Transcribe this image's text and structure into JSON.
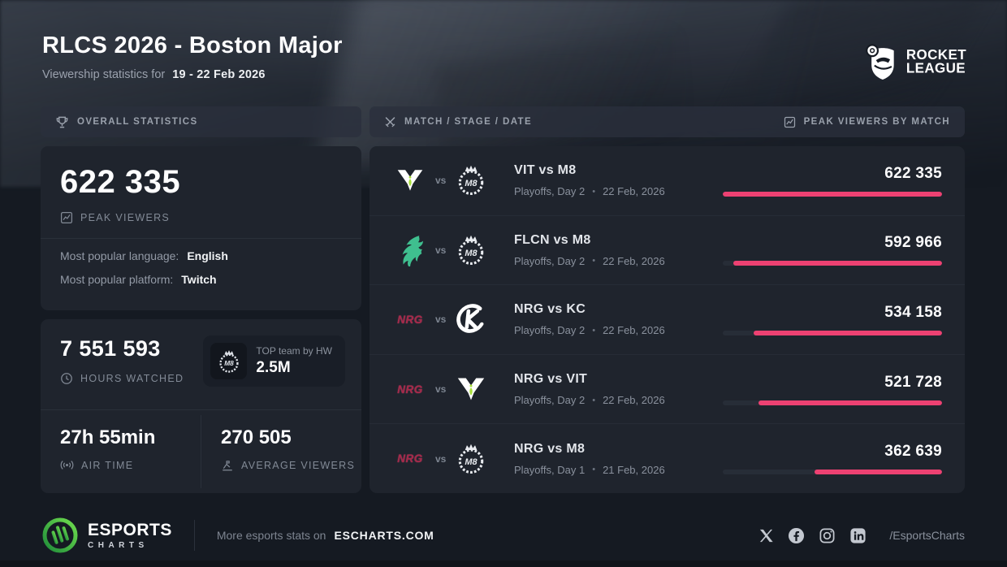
{
  "header": {
    "title": "RLCS 2026 - Boston Major",
    "subtitle_prefix": "Viewership statistics for",
    "date_range": "19 - 22 Feb 2026",
    "brand_line1": "ROCKET",
    "brand_line2": "LEAGUE"
  },
  "overall": {
    "panel_title": "OVERALL STATISTICS",
    "peak_viewers": {
      "value": "622 335",
      "label": "PEAK VIEWERS"
    },
    "language": {
      "label": "Most popular language:",
      "value": "English"
    },
    "platform": {
      "label": "Most popular platform:",
      "value": "Twitch"
    },
    "hours_watched": {
      "value": "7 551 593",
      "label": "HOURS WATCHED"
    },
    "top_team": {
      "label": "TOP team by HW",
      "value": "2.5M",
      "team": "M8"
    },
    "air_time": {
      "value": "27h 55min",
      "label": "AIR TIME"
    },
    "average_viewers": {
      "value": "270 505",
      "label": "AVERAGE VIEWERS"
    }
  },
  "matches": {
    "panel_title_left": "MATCH / STAGE / DATE",
    "panel_title_right": "PEAK VIEWERS BY MATCH",
    "vs_label": "vs",
    "rows": [
      {
        "team1": "VIT",
        "team2": "M8",
        "title": "VIT vs M8",
        "stage": "Playoffs, Day 2",
        "dot": "•",
        "date": "22 Feb, 2026",
        "value": "622 335"
      },
      {
        "team1": "FLCN",
        "team2": "M8",
        "title": "FLCN vs M8",
        "stage": "Playoffs, Day 2",
        "dot": "•",
        "date": "22 Feb, 2026",
        "value": "592 966"
      },
      {
        "team1": "NRG",
        "team2": "KC",
        "title": "NRG vs KC",
        "stage": "Playoffs, Day 2",
        "dot": "•",
        "date": "22 Feb, 2026",
        "value": "534 158"
      },
      {
        "team1": "NRG",
        "team2": "VIT",
        "title": "NRG vs VIT",
        "stage": "Playoffs, Day 2",
        "dot": "•",
        "date": "22 Feb, 2026",
        "value": "521 728"
      },
      {
        "team1": "NRG",
        "team2": "M8",
        "title": "NRG vs M8",
        "stage": "Playoffs, Day 1",
        "dot": "•",
        "date": "21 Feb, 2026",
        "value": "362 639"
      }
    ]
  },
  "chart_data": {
    "type": "bar",
    "orientation": "horizontal",
    "title": "PEAK VIEWERS BY MATCH",
    "categories": [
      "VIT vs M8",
      "FLCN vs M8",
      "NRG vs KC",
      "NRG vs VIT",
      "NRG vs M8"
    ],
    "values": [
      622335,
      592966,
      534158,
      521728,
      362639
    ],
    "value_labels": [
      "622 335",
      "592 966",
      "534 158",
      "521 728",
      "362 639"
    ],
    "xlim": [
      0,
      622335
    ],
    "bar_color": "#ED4172",
    "track_color": "#272D37",
    "bars_anchored": "right"
  },
  "footer": {
    "brand_line1": "ESPORTS",
    "brand_line2": "CHARTS",
    "tagline": "More esports stats on",
    "site": "ESCHARTS.COM",
    "handle": "/EsportsCharts",
    "social_icons": [
      "x",
      "facebook",
      "instagram",
      "linkedin"
    ]
  },
  "colors": {
    "background": "#151A22",
    "card": "#1F242D",
    "panel_header": "#2A303C",
    "accent_pink": "#ED4172",
    "muted_text": "#8A919D",
    "vitality_green": "#A8E03A",
    "falcons_green": "#3FBF8F",
    "nrg_red": "#A5294A"
  }
}
